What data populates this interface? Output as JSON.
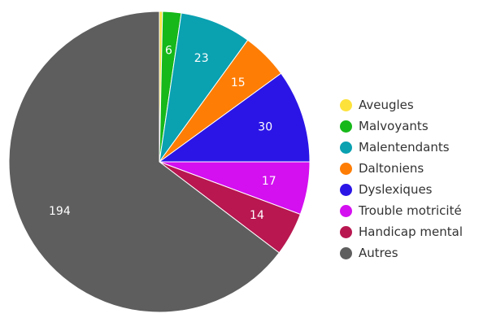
{
  "chart_data": {
    "type": "pie",
    "categories": [
      "Aveugles",
      "Malvoyants",
      "Malentendants",
      "Daltoniens",
      "Dyslexiques",
      "Trouble motricité",
      "Handicap mental",
      "Autres"
    ],
    "values": [
      1,
      6,
      23,
      15,
      30,
      17,
      14,
      194
    ],
    "colors": [
      "#fde23b",
      "#16b81a",
      "#0aa1b1",
      "#fe7d04",
      "#2b15e6",
      "#d40ff0",
      "#b81750",
      "#5e5e5e"
    ],
    "data_labels": [
      "",
      "6",
      "23",
      "15",
      "30",
      "17",
      "14",
      "194"
    ],
    "start_angle": "top",
    "direction": "clockwise",
    "legend_position": "right"
  }
}
